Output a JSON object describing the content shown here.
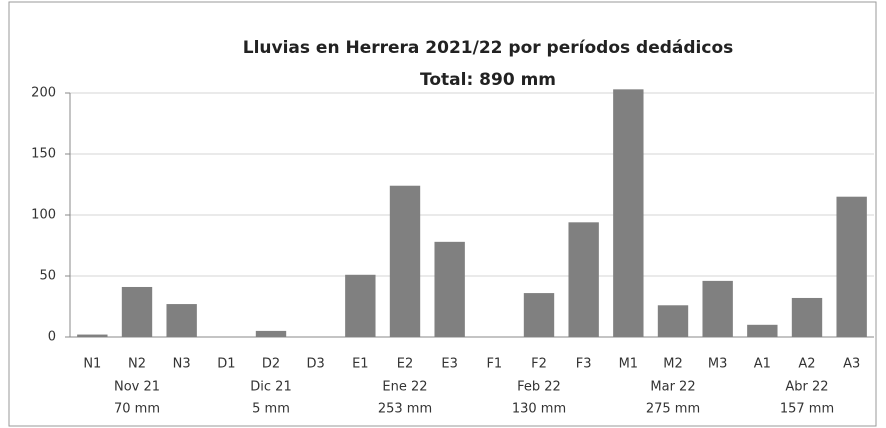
{
  "chart_data": {
    "type": "bar",
    "title": "Lluvias en Herrera 2021/22 por períodos dedádicos",
    "subtitle": "Total: 890 mm",
    "categories": [
      "N1",
      "N2",
      "N3",
      "D1",
      "D2",
      "D3",
      "E1",
      "E2",
      "E3",
      "F1",
      "F2",
      "F3",
      "M1",
      "M2",
      "M3",
      "A1",
      "A2",
      "A3"
    ],
    "values": [
      2,
      41,
      27,
      0,
      5,
      0,
      51,
      124,
      78,
      0,
      36,
      94,
      203,
      26,
      46,
      10,
      32,
      115
    ],
    "color": "#808080",
    "groups": [
      {
        "label": "Nov 21",
        "total": "70 mm"
      },
      {
        "label": "Dic 21",
        "total": "5 mm"
      },
      {
        "label": "Ene 22",
        "total": "253 mm"
      },
      {
        "label": "Feb 22",
        "total": "130 mm"
      },
      {
        "label": "Mar 22",
        "total": "275  mm"
      },
      {
        "label": "Abr 22",
        "total": "157  mm"
      }
    ],
    "ylim": [
      0,
      200
    ],
    "yticks": [
      0,
      50,
      100,
      150,
      200
    ],
    "grid": true
  }
}
